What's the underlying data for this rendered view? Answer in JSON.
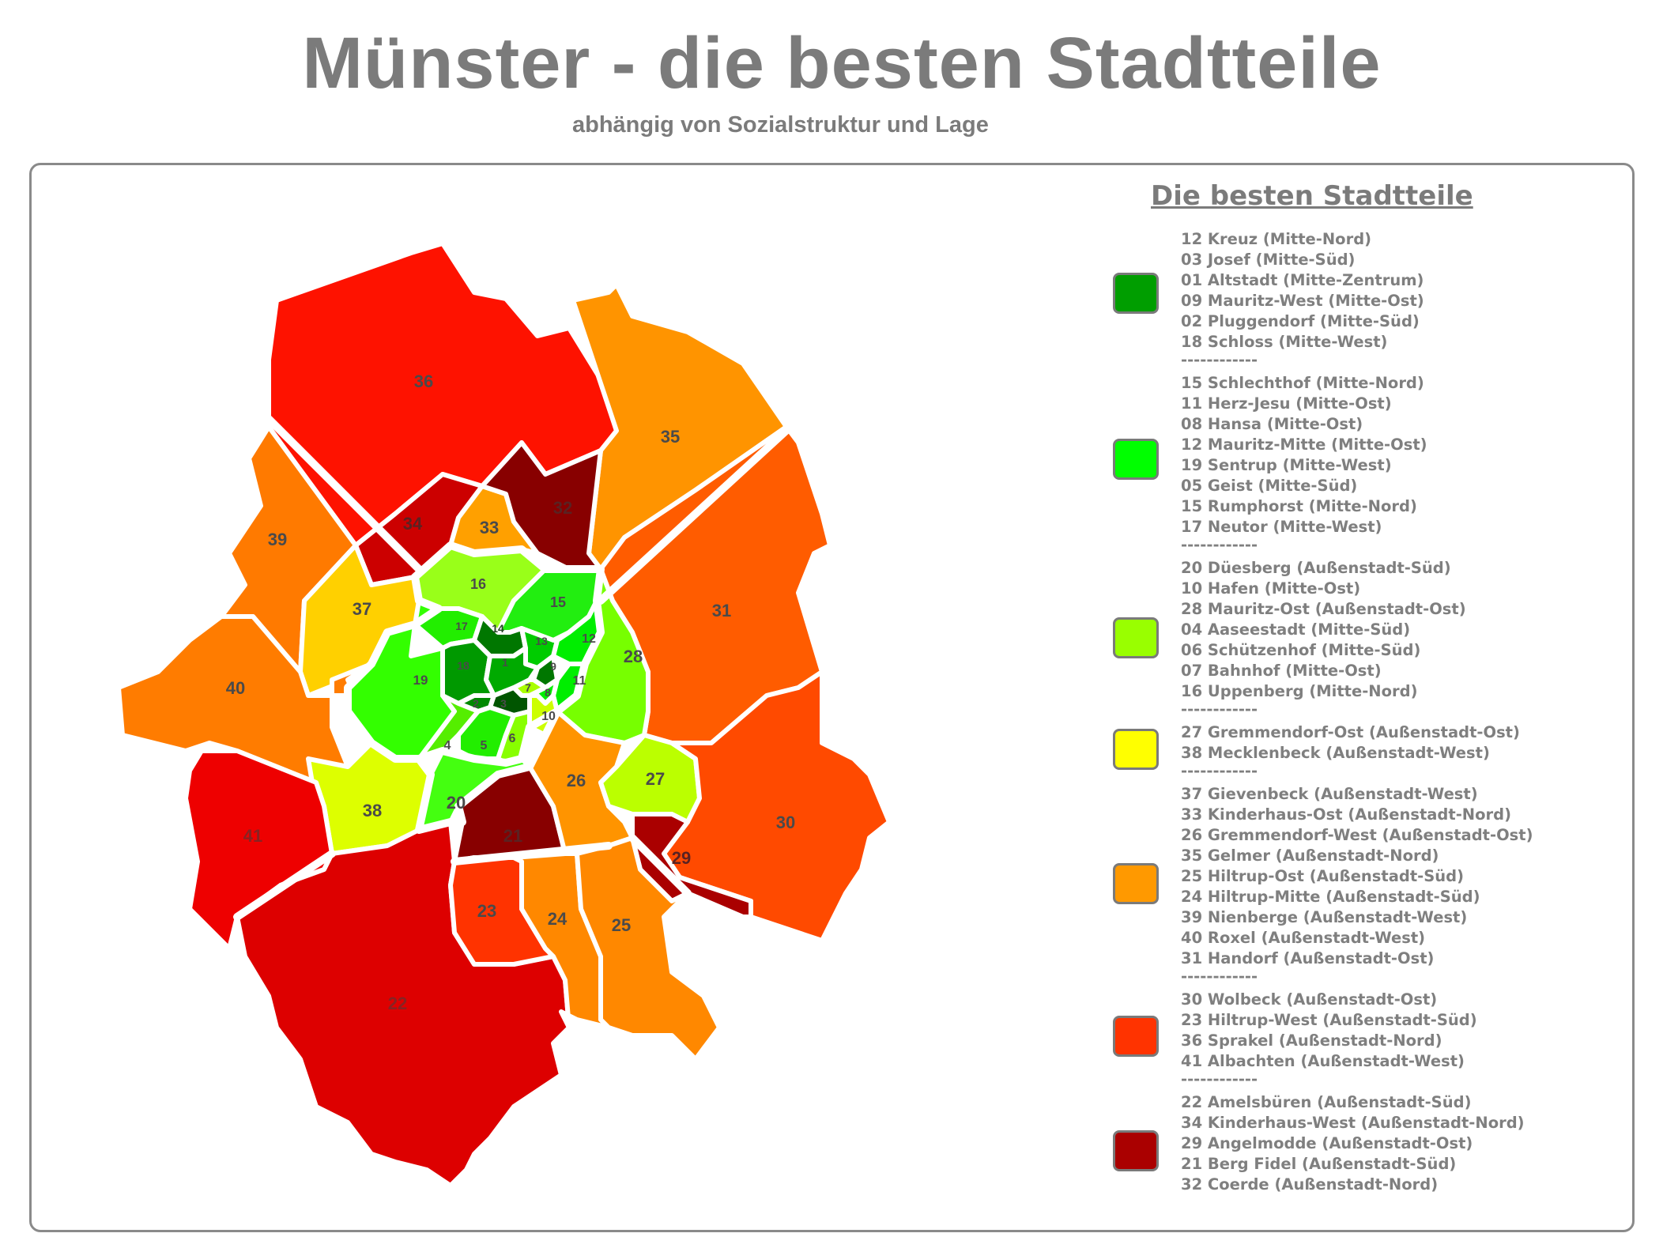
{
  "title": "Münster - die besten Stadtteile",
  "subtitle": "abhängig von Sozialstruktur und Lage",
  "legend": {
    "title": "Die besten Stadtteile",
    "separator": "------------",
    "groups": [
      {
        "color": "#009e00",
        "entries": [
          "12 Kreuz (Mitte-Nord)",
          "03 Josef (Mitte-Süd)",
          "01 Altstadt (Mitte-Zentrum)",
          "09 Mauritz-West (Mitte-Ost)",
          "02 Pluggendorf (Mitte-Süd)",
          "18 Schloss (Mitte-West)"
        ]
      },
      {
        "color": "#00ff00",
        "entries": [
          "15 Schlechthof (Mitte-Nord)",
          "11 Herz-Jesu (Mitte-Ost)",
          "08 Hansa (Mitte-Ost)",
          "12 Mauritz-Mitte (Mitte-Ost)",
          "19 Sentrup (Mitte-West)",
          "05 Geist (Mitte-Süd)",
          "15 Rumphorst (Mitte-Nord)",
          "17 Neutor (Mitte-West)"
        ]
      },
      {
        "color": "#99ff00",
        "entries": [
          "20 Düesberg (Außenstadt-Süd)",
          "10 Hafen (Mitte-Ost)",
          "28 Mauritz-Ost (Außenstadt-Ost)",
          "04 Aaseestadt (Mitte-Süd)",
          "06 Schützenhof (Mitte-Süd)",
          "07 Bahnhof (Mitte-Ost)",
          "16 Uppenberg (Mitte-Nord)"
        ]
      },
      {
        "color": "#ffff00",
        "entries": [
          "27 Gremmendorf-Ost (Außenstadt-Ost)",
          "38 Mecklenbeck (Außenstadt-West)"
        ]
      },
      {
        "color": "#ff9900",
        "entries": [
          "37 Gievenbeck (Außenstadt-West)",
          "33 Kinderhaus-Ost (Außenstadt-Nord)",
          "26 Gremmendorf-West (Außenstadt-Ost)",
          "35 Gelmer (Außenstadt-Nord)",
          "25 Hiltrup-Ost (Außenstadt-Süd)",
          "24 Hiltrup-Mitte (Außenstadt-Süd)",
          "39 Nienberge (Außenstadt-West)",
          "40 Roxel (Außenstadt-West)",
          "31 Handorf (Außenstadt-Ost)"
        ]
      },
      {
        "color": "#ff3300",
        "entries": [
          "30 Wolbeck (Außenstadt-Ost)",
          "23 Hiltrup-West (Außenstadt-Süd)",
          "36 Sprakel (Außenstadt-Nord)",
          "41 Albachten (Außenstadt-West)"
        ]
      },
      {
        "color": "#aa0000",
        "entries": [
          "22 Amelsbüren (Außenstadt-Süd)",
          "34 Kinderhaus-West (Außenstadt-Nord)",
          "29 Angelmodde (Außenstadt-Ost)",
          "21 Berg Fidel (Außenstadt-Süd)",
          "32 Coerde (Außenstadt-Nord)"
        ]
      }
    ]
  },
  "districts": [
    {
      "id": "36",
      "fill": "#fe1200"
    },
    {
      "id": "35",
      "fill": "#ff9400"
    },
    {
      "id": "39",
      "fill": "#ff7a00"
    },
    {
      "id": "34",
      "fill": "#cc0000"
    },
    {
      "id": "33",
      "fill": "#ffa000"
    },
    {
      "id": "32",
      "fill": "#880000"
    },
    {
      "id": "37",
      "fill": "#ffd000"
    },
    {
      "id": "31",
      "fill": "#ff5c00"
    },
    {
      "id": "40",
      "fill": "#ff7c00"
    },
    {
      "id": "16",
      "fill": "#99ff19"
    },
    {
      "id": "15",
      "fill": "#22ee10"
    },
    {
      "id": "28",
      "fill": "#77ff00"
    },
    {
      "id": "19",
      "fill": "#33ff00"
    },
    {
      "id": "12",
      "fill": "#00ee00"
    },
    {
      "id": "11",
      "fill": "#00ee00"
    },
    {
      "id": "17",
      "fill": "#22ee00"
    },
    {
      "id": "14",
      "fill": "#007700"
    },
    {
      "id": "18",
      "fill": "#009900"
    },
    {
      "id": "13",
      "fill": "#00cc00"
    },
    {
      "id": "1",
      "fill": "#00aa00"
    },
    {
      "id": "9",
      "fill": "#007700"
    },
    {
      "id": "7",
      "fill": "#aaff00"
    },
    {
      "id": "8",
      "fill": "#00ee00"
    },
    {
      "id": "2",
      "fill": "#008800"
    },
    {
      "id": "3",
      "fill": "#005500"
    },
    {
      "id": "10",
      "fill": "#ccff00"
    },
    {
      "id": "4",
      "fill": "#55ee00"
    },
    {
      "id": "5",
      "fill": "#22ee00"
    },
    {
      "id": "6",
      "fill": "#88ff00"
    },
    {
      "id": "20",
      "fill": "#44ff10"
    },
    {
      "id": "38",
      "fill": "#ddff00"
    },
    {
      "id": "41",
      "fill": "#ee0000"
    },
    {
      "id": "21",
      "fill": "#880000"
    },
    {
      "id": "26",
      "fill": "#ff9400"
    },
    {
      "id": "27",
      "fill": "#bbff00"
    },
    {
      "id": "30",
      "fill": "#ff4a00"
    },
    {
      "id": "29",
      "fill": "#aa0000"
    },
    {
      "id": "22",
      "fill": "#dd0000"
    },
    {
      "id": "23",
      "fill": "#ff3300"
    },
    {
      "id": "24",
      "fill": "#ff8800"
    },
    {
      "id": "25",
      "fill": "#ff8800"
    }
  ]
}
